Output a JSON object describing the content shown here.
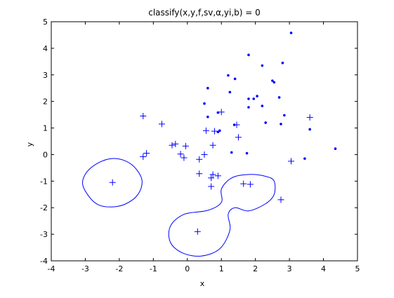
{
  "chart_data": {
    "type": "scatter",
    "title": "classify(x,y,f,sv,α,yi,b) = 0",
    "xlabel": "x",
    "ylabel": "y",
    "xlim": [
      -4,
      5
    ],
    "ylim": [
      -4,
      5
    ],
    "xticks": [
      "-4",
      "-3",
      "-2",
      "-1",
      "0",
      "1",
      "2",
      "3",
      "4",
      "5"
    ],
    "yticks": [
      "-4",
      "-3",
      "-2",
      "-1",
      "0",
      "1",
      "2",
      "3",
      "4",
      "5"
    ],
    "grid": false,
    "color": "#0000ff",
    "series": [
      {
        "marker": "dot",
        "points": [
          [
            3.05,
            4.58
          ],
          [
            1.8,
            3.75
          ],
          [
            2.2,
            3.35
          ],
          [
            2.8,
            3.45
          ],
          [
            1.2,
            2.98
          ],
          [
            1.4,
            2.85
          ],
          [
            2.5,
            2.78
          ],
          [
            2.55,
            2.72
          ],
          [
            0.6,
            2.5
          ],
          [
            1.25,
            2.35
          ],
          [
            2.05,
            2.2
          ],
          [
            2.7,
            2.15
          ],
          [
            1.8,
            2.1
          ],
          [
            1.95,
            2.1
          ],
          [
            0.5,
            1.92
          ],
          [
            0.9,
            1.58
          ],
          [
            1.8,
            1.78
          ],
          [
            2.2,
            1.83
          ],
          [
            0.6,
            1.42
          ],
          [
            2.85,
            1.48
          ],
          [
            1.38,
            1.12
          ],
          [
            2.3,
            1.2
          ],
          [
            2.75,
            1.15
          ],
          [
            0.9,
            0.85
          ],
          [
            0.95,
            0.9
          ],
          [
            3.6,
            0.95
          ],
          [
            1.3,
            0.08
          ],
          [
            1.75,
            0.05
          ],
          [
            4.35,
            0.22
          ],
          [
            3.45,
            -0.15
          ]
        ]
      },
      {
        "marker": "plus",
        "points": [
          [
            -1.3,
            1.45
          ],
          [
            -0.75,
            1.15
          ],
          [
            1.0,
            1.6
          ],
          [
            1.45,
            1.12
          ],
          [
            3.6,
            1.4
          ],
          [
            0.55,
            0.9
          ],
          [
            0.8,
            0.88
          ],
          [
            1.5,
            0.65
          ],
          [
            -0.45,
            0.35
          ],
          [
            -0.35,
            0.4
          ],
          [
            -0.05,
            0.32
          ],
          [
            0.75,
            0.35
          ],
          [
            -1.2,
            0.05
          ],
          [
            -1.3,
            -0.08
          ],
          [
            -0.2,
            0.02
          ],
          [
            -0.1,
            -0.12
          ],
          [
            0.5,
            0.0
          ],
          [
            0.35,
            -0.18
          ],
          [
            3.05,
            -0.25
          ],
          [
            0.35,
            -0.72
          ],
          [
            0.75,
            -0.75
          ],
          [
            0.9,
            -0.8
          ],
          [
            0.7,
            -0.88
          ],
          [
            0.7,
            -1.2
          ],
          [
            -2.2,
            -1.05
          ],
          [
            1.65,
            -1.1
          ],
          [
            1.85,
            -1.12
          ],
          [
            2.75,
            -1.7
          ],
          [
            0.3,
            -2.9
          ]
        ]
      }
    ],
    "contours": [
      {
        "name": "left-loop",
        "points": [
          [
            -2.2,
            -0.15
          ],
          [
            -1.8,
            -0.25
          ],
          [
            -1.5,
            -0.55
          ],
          [
            -1.33,
            -1.0
          ],
          [
            -1.45,
            -1.5
          ],
          [
            -1.8,
            -1.85
          ],
          [
            -2.2,
            -1.97
          ],
          [
            -2.6,
            -1.9
          ],
          [
            -2.88,
            -1.6
          ],
          [
            -3.08,
            -1.1
          ],
          [
            -2.95,
            -0.65
          ],
          [
            -2.6,
            -0.3
          ]
        ]
      },
      {
        "name": "right-loop",
        "points": [
          [
            1.8,
            -0.75
          ],
          [
            2.3,
            -0.82
          ],
          [
            2.55,
            -1.0
          ],
          [
            2.55,
            -1.5
          ],
          [
            2.3,
            -1.85
          ],
          [
            1.8,
            -2.12
          ],
          [
            1.4,
            -2.0
          ],
          [
            1.2,
            -2.25
          ],
          [
            1.25,
            -2.85
          ],
          [
            0.95,
            -3.55
          ],
          [
            0.4,
            -3.82
          ],
          [
            -0.15,
            -3.7
          ],
          [
            -0.5,
            -3.3
          ],
          [
            -0.5,
            -2.7
          ],
          [
            -0.1,
            -2.25
          ],
          [
            0.6,
            -2.1
          ],
          [
            1.0,
            -1.8
          ],
          [
            1.0,
            -1.3
          ],
          [
            1.3,
            -0.88
          ]
        ]
      }
    ]
  }
}
